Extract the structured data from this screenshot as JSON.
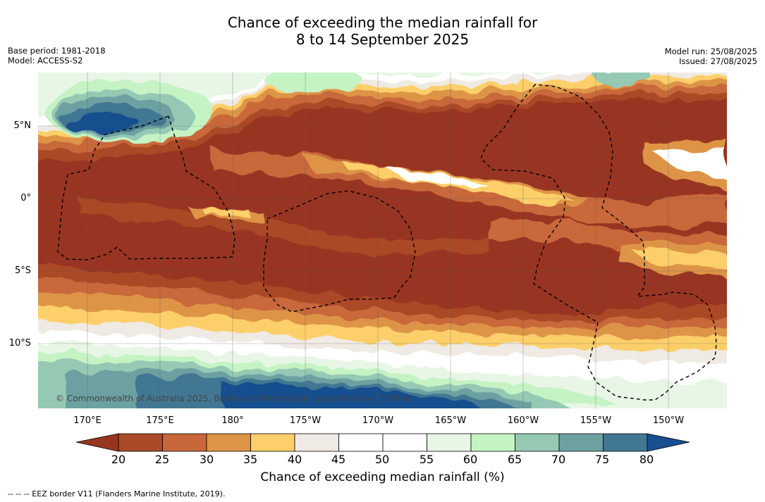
{
  "title_line1": "Chance of exceeding the median rainfall for",
  "title_line2": "8 to 14 September 2025",
  "base_period": "Base period: 1981-2018",
  "model": "Model: ACCESS-S2",
  "model_run": "Model run: 25/08/2025",
  "issued": "Issued: 27/08/2025",
  "copyright": "© Commonwealth of Australia 2025, Bureau of Meteorology, supported by COSPPac",
  "lat_labels": [
    "5°N",
    "0°",
    "5°S",
    "10°S"
  ],
  "lon_labels": [
    "170°E",
    "175°E",
    "180°",
    "175°W",
    "170°W",
    "165°W",
    "160°W",
    "155°W",
    "150°W"
  ],
  "colorbar": {
    "label": "Chance of exceeding median rainfall (%)",
    "ticks": [
      "20",
      "25",
      "30",
      "35",
      "40",
      "45",
      "50",
      "55",
      "60",
      "65",
      "70",
      "75",
      "80"
    ],
    "colors": [
      "#983520",
      "#ab4a28",
      "#c8683a",
      "#de9446",
      "#fccf6a",
      "#efeae3",
      "#ffffff",
      "#ffffff",
      "#e8f6e6",
      "#c5f3c4",
      "#96c9b4",
      "#6da1a1",
      "#427793",
      "#174f8f"
    ]
  },
  "legend_note": "--  --  -- EEZ border V11 (Flanders Marine Institute, 2019)."
}
